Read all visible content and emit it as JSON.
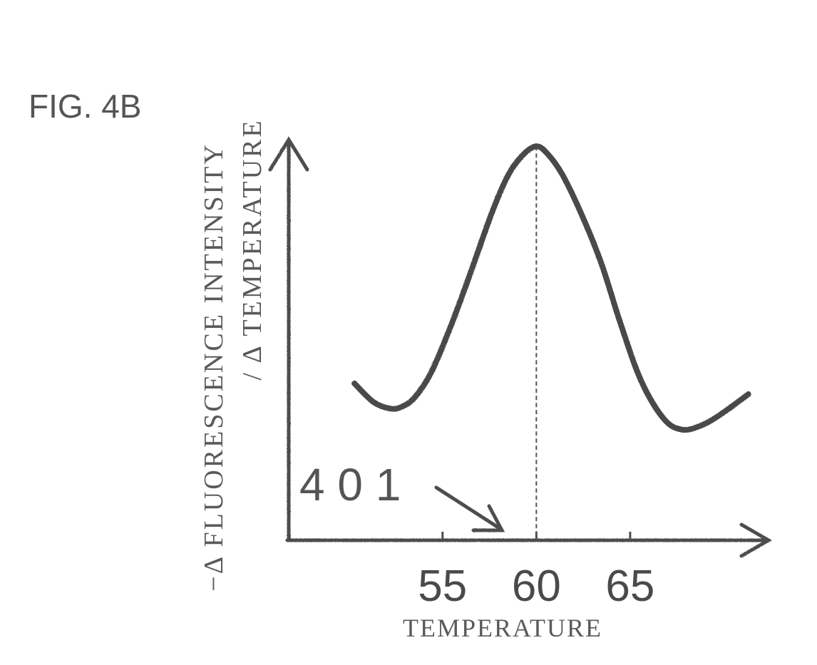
{
  "figure_label": "FIG. 4B",
  "reference_numeral": "4 0 1",
  "chart_data": {
    "type": "line",
    "title": "",
    "xlabel": "TEMPERATURE",
    "ylabel_line1": "−Δ FLUORESCENCE   INTENSITY",
    "ylabel_line2": "/ Δ TEMPERATURE",
    "x_ticks": [
      55,
      60,
      65
    ],
    "x_tick_labels": [
      "55",
      "60",
      "65"
    ],
    "xlim": [
      46.8,
      72.3
    ],
    "ylim": [
      0,
      1
    ],
    "grid": false,
    "legend": "none",
    "marker_line": {
      "x": 60,
      "style": "dashed"
    },
    "series": [
      {
        "x": [
          50.3,
          51.3,
          52.2,
          52.8,
          53.5,
          54.4,
          55.4,
          56.4,
          57.6,
          58.5,
          59.3,
          60.0,
          60.6,
          61.4,
          62.5,
          63.5,
          64.5,
          65.6,
          66.8,
          67.8,
          68.9,
          70.0,
          71.3
        ],
        "y": [
          0.393,
          0.347,
          0.33,
          0.334,
          0.357,
          0.421,
          0.532,
          0.658,
          0.817,
          0.915,
          0.966,
          0.987,
          0.968,
          0.915,
          0.807,
          0.689,
          0.541,
          0.398,
          0.304,
          0.277,
          0.29,
          0.321,
          0.366
        ]
      }
    ]
  }
}
